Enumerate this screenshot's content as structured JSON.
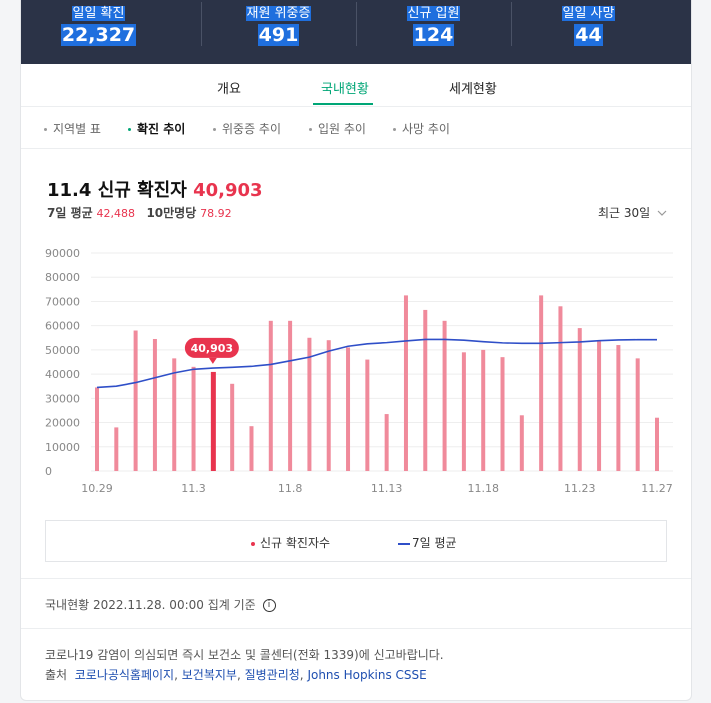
{
  "stats": [
    {
      "label": "일일 확진",
      "value": "22,327"
    },
    {
      "label": "재원 위중증",
      "value": "491"
    },
    {
      "label": "신규 입원",
      "value": "124"
    },
    {
      "label": "일일 사망",
      "value": "44"
    }
  ],
  "tabs": [
    "개요",
    "국내현황",
    "세계현황"
  ],
  "active_tab": "국내현황",
  "subtabs": [
    "지역별 표",
    "확진 추이",
    "위중증 추이",
    "입원 추이",
    "사망 추이"
  ],
  "active_subtab": "확진 추이",
  "headline": {
    "date": "11.4",
    "label": "신규 확진자",
    "value": "40,903"
  },
  "averages": {
    "avg7_label": "7일 평균",
    "avg7_value": "42,488",
    "per100k_label": "10만명당",
    "per100k_value": "78.92"
  },
  "period_select": "최근 30일",
  "chart_data": {
    "type": "bar",
    "y_ticks": [
      0,
      10000,
      20000,
      30000,
      40000,
      50000,
      60000,
      70000,
      80000,
      90000
    ],
    "ylim": [
      0,
      90000
    ],
    "x_tick_labels": [
      "10.29",
      "11.3",
      "11.8",
      "11.13",
      "11.18",
      "11.23",
      "11.27"
    ],
    "x_tick_indices": [
      0,
      5,
      10,
      15,
      20,
      25,
      29
    ],
    "series": [
      {
        "name": "신규 확진자수",
        "color": "#f08a9b",
        "values": [
          34500,
          18000,
          58000,
          54500,
          46500,
          43000,
          40903,
          36000,
          18500,
          62000,
          62000,
          55000,
          54000,
          51000,
          46000,
          23500,
          72500,
          66500,
          62000,
          49000,
          50000,
          47000,
          23000,
          72500,
          68000,
          59000,
          53500,
          52000,
          46500,
          22000
        ]
      },
      {
        "name": "7일 평균",
        "color": "#2f4fc8",
        "values": [
          34500,
          35000,
          36500,
          38500,
          40500,
          42000,
          42488,
          42800,
          43200,
          44000,
          45500,
          47000,
          49500,
          51500,
          52500,
          53000,
          53700,
          54300,
          54300,
          54000,
          53400,
          52900,
          52700,
          52700,
          53000,
          53300,
          53800,
          54100,
          54200,
          54200
        ]
      }
    ],
    "highlight": {
      "index": 6,
      "label": "40,903"
    }
  },
  "legend": {
    "series1": "신규 확진자수",
    "series2": "7일 평균"
  },
  "basis_text": "국내현황 2022.11.28. 00:00 집계 기준",
  "notice_text": "코로나19 감염이 의심되면 즉시 보건소 및 콜센터(전화 1339)에 신고바랍니다.",
  "source_label": "출처",
  "sources": [
    "코로나공식홈페이지",
    "보건복지부",
    "질병관리청",
    "Johns Hopkins CSSE"
  ]
}
